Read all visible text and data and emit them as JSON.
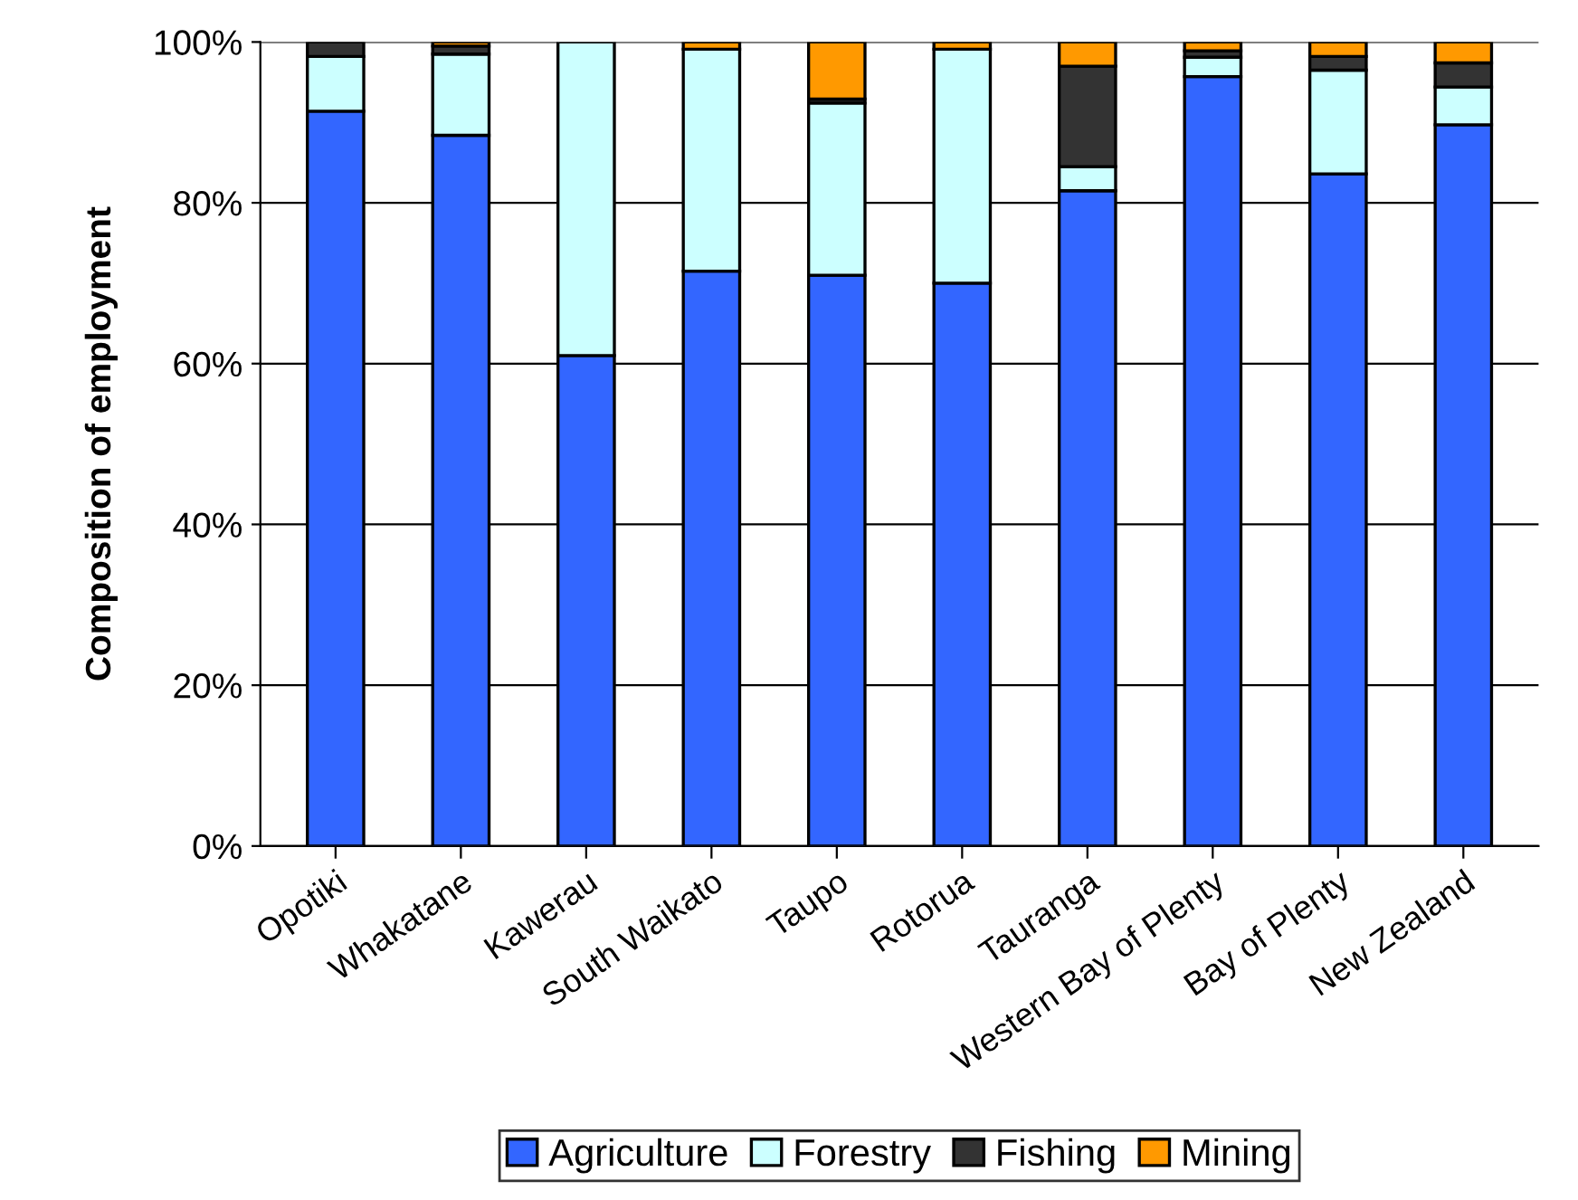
{
  "chart_data": {
    "type": "bar",
    "stacked": true,
    "ylabel": "Composition of employment",
    "categories": [
      "Opotiki",
      "Whakatane",
      "Kawerau",
      "South Waikato",
      "Taupo",
      "Rotorua",
      "Tauranga",
      "Western Bay of Plenty",
      "Bay of Plenty",
      "New Zealand"
    ],
    "series": [
      {
        "name": "Agriculture",
        "color": "#3366ff",
        "values": [
          91.4,
          88.4,
          61.0,
          71.5,
          71.0,
          70.0,
          81.5,
          95.7,
          83.6,
          89.7
        ]
      },
      {
        "name": "Forestry",
        "color": "#ccffff",
        "values": [
          6.8,
          10.1,
          39.0,
          27.6,
          21.4,
          29.1,
          3.0,
          2.4,
          12.9,
          4.7
        ]
      },
      {
        "name": "Fishing",
        "color": "#333333",
        "values": [
          1.8,
          1.0,
          null,
          null,
          0.5,
          null,
          12.5,
          0.8,
          1.7,
          3.0
        ]
      },
      {
        "name": "Mining",
        "color": "#ff9900",
        "values": [
          null,
          0.5,
          null,
          0.9,
          7.1,
          0.9,
          3.0,
          1.1,
          1.8,
          2.6
        ]
      }
    ],
    "ylim": [
      0,
      100
    ],
    "yticks": [
      {
        "value": 0,
        "label": "0%"
      },
      {
        "value": 20,
        "label": "20%"
      },
      {
        "value": 40,
        "label": "40%"
      },
      {
        "value": 60,
        "label": "60%"
      },
      {
        "value": 80,
        "label": "80%"
      },
      {
        "value": 100,
        "label": "100%"
      }
    ],
    "grid": "y",
    "legend": "bottom"
  }
}
